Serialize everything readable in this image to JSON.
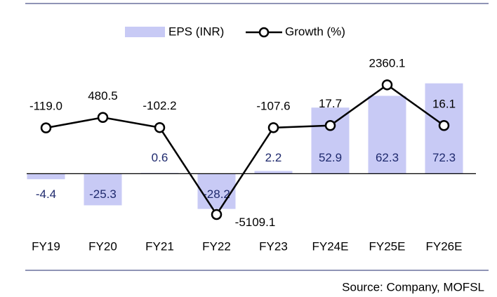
{
  "chart_data": {
    "type": "bar-line",
    "categories": [
      "FY19",
      "FY20",
      "FY21",
      "FY22",
      "FY23",
      "FY24E",
      "FY25E",
      "FY26E"
    ],
    "series": [
      {
        "name": "EPS (INR)",
        "type": "bar",
        "color": "#c8caf5",
        "label_color": "#1f2a6e",
        "values": [
          -4.4,
          -25.3,
          0.6,
          -28.2,
          2.2,
          52.9,
          62.3,
          72.3
        ]
      },
      {
        "name": "Growth (%)",
        "type": "line",
        "axis": "y2",
        "color": "#000000",
        "values": [
          -119.0,
          480.5,
          -102.2,
          -5109.1,
          -107.6,
          17.7,
          2360.1,
          16.1
        ],
        "value_labels": [
          "-119.0",
          "480.5",
          "-102.2",
          "-5109.1",
          "-107.6",
          "17.7",
          "2360.1",
          "16.1"
        ]
      }
    ],
    "ylim": [
      -45,
      80
    ],
    "y2lim": [
      -6000,
      3000
    ],
    "legend": "top",
    "source": "Source: Company, MOFSL"
  }
}
